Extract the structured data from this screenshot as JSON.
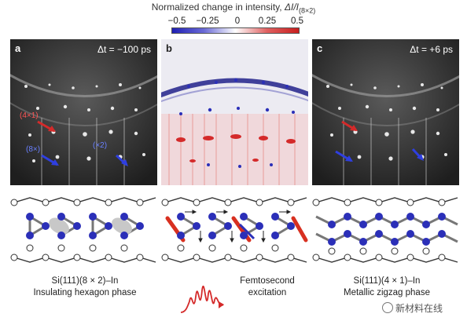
{
  "colorbar": {
    "title_prefix": "Normalized change in intensity, ",
    "title_symbol": "ΔI/I",
    "title_subscript": "(8×2)",
    "ticks": [
      "−0.5",
      "−0.25",
      "0",
      "0.25",
      "0.5"
    ],
    "colors": {
      "negative": "#1f1fb4",
      "zero": "#ffffff",
      "positive": "#c81e1e"
    }
  },
  "panels": {
    "a": {
      "label": "a",
      "delta_t": "Δt = −100 ps",
      "annotations": [
        "(4×1)",
        "(8×)",
        "(×2)"
      ]
    },
    "b": {
      "label": "b"
    },
    "c": {
      "label": "c",
      "delta_t": "Δt = +6 ps"
    }
  },
  "captions": {
    "left_line1": "Si(111)(8 × 2)–In",
    "left_line2": "Insulating hexagon phase",
    "middle_line1": "Femtosecond",
    "middle_line2": "excitation",
    "right_line1": "Si(111)(4 × 1)–In",
    "right_line2": "Metallic zigzag phase"
  },
  "watermark": "新材料在线",
  "colors": {
    "atom_blue": "#2b2fb8",
    "arrow_red": "#d42a2a",
    "arrow_blue": "#2f3fe0",
    "stripe_red": "#d83020"
  }
}
